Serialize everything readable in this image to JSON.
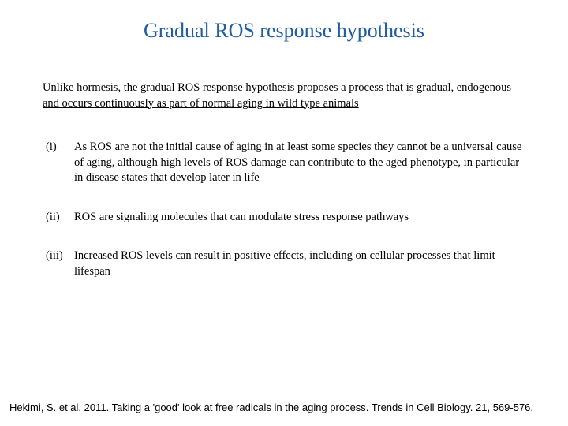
{
  "title": "Gradual ROS response hypothesis",
  "intro": "Unlike hormesis, the gradual ROS response hypothesis proposes a process that is gradual, endogenous and occurs continuously as part of normal aging in wild type animals",
  "points": [
    {
      "marker": "(i)",
      "text": "As ROS are not the initial cause of aging in at least some species they cannot be a universal cause of aging, although high levels of ROS damage can contribute to the aged phenotype, in particular in disease states that develop later in life"
    },
    {
      "marker": "(ii)",
      "text": "ROS are signaling molecules that can modulate stress response pathways"
    },
    {
      "marker": "(iii)",
      "text": "Increased ROS levels can result in positive effects, including on cellular processes that limit lifespan"
    }
  ],
  "citation": "Hekimi, S. et al. 2011. Taking a 'good' look at free radicals in the aging process. Trends in Cell Biology. 21, 569-576.",
  "colors": {
    "title_color": "#1f5da0",
    "text_color": "#000000",
    "background": "#ffffff"
  },
  "typography": {
    "title_fontsize": 26,
    "body_fontsize": 14.5,
    "citation_fontsize": 13,
    "title_font": "Georgia",
    "body_font": "Georgia",
    "citation_font": "Arial"
  }
}
